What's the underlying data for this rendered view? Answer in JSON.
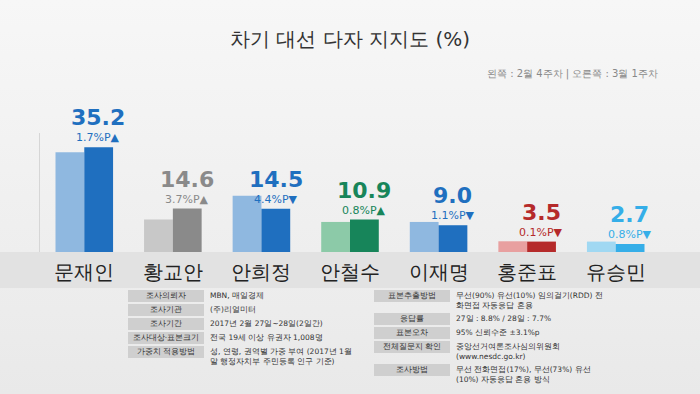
{
  "chart_data": {
    "type": "bar",
    "title": "차기 대선 다자 지지도 (%)",
    "subtitle": "왼쪽 : 2월 4주차 | 오른쪽 : 3월 1주차",
    "categories": [
      "문재인",
      "황교안",
      "안희정",
      "안철수",
      "이재명",
      "홍준표",
      "유승민"
    ],
    "series": [
      {
        "values": [
          33.5,
          10.9,
          18.9,
          10.1,
          10.1,
          3.6,
          3.5
        ],
        "colors": [
          "#8fb8e0",
          "#c8c8c8",
          "#8fb8e0",
          "#8ccaa8",
          "#8fb8e0",
          "#e8a0a0",
          "#a0d8f2"
        ]
      },
      {
        "values": [
          35.2,
          14.6,
          14.5,
          10.9,
          9.0,
          3.5,
          2.7
        ],
        "value_labels": [
          "35.2",
          "14.6",
          "14.5",
          "10.9",
          "9.0",
          "3.5",
          "2.7"
        ],
        "colors": [
          "#1f6fbf",
          "#8a8a8a",
          "#1f6fbf",
          "#17855a",
          "#1f6fbf",
          "#b52a2a",
          "#35aee8"
        ],
        "data_labels": true
      }
    ],
    "change_labels": [
      "1.7%P▲",
      "3.7%P▲",
      "4.4%P▼",
      "0.8%P▲",
      "1.1%P▼",
      "0.1%P▼",
      "0.8%P▼"
    ],
    "ylim": [
      0,
      40
    ],
    "grid": false,
    "tick_labels": "x",
    "notes": {
      "left": [
        [
          "조사의뢰자",
          "MBN, 매일경제"
        ],
        [
          "조사기관",
          "(주)리얼미터"
        ],
        [
          "조사기간",
          "2017년 2월 27일~28일(2일간)"
        ],
        [
          "조사대상·표본크기",
          "전국 19세 이상 유권자 1,008명"
        ],
        [
          "가중치 적용방법",
          "성, 연령, 권역별 가중 부여 (2017년 1월 말 행정자치부 주민등록 인구 기준)"
        ]
      ],
      "right": [
        [
          "표본추출방법",
          "무선(90%) 유선(10%) 임의걸기(RDD) 전화면접 자동응답 혼용"
        ],
        [
          "응답률",
          "27일 : 8.8% / 28일 : 7.7%"
        ],
        [
          "표본오차",
          "95% 신뢰수준 ±3.1%p"
        ],
        [
          "전체질문지 확인",
          "중앙선거여론조사심의위원회 (www.nesdc.go.kr)"
        ],
        [
          "조사방법",
          "무선 전화면접(17%), 무선(73%) 유선(10%) 자동응답 혼용 방식"
        ]
      ]
    }
  }
}
